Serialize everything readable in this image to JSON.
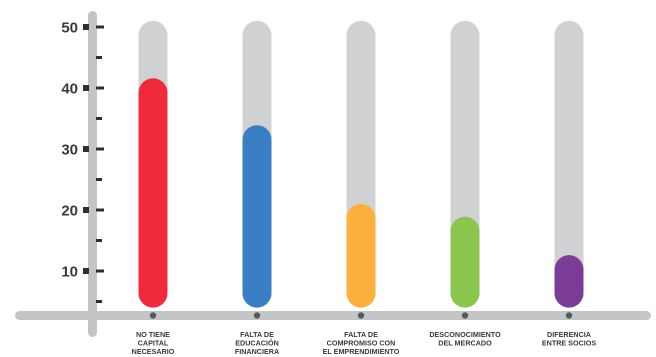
{
  "chart_data": {
    "type": "bar",
    "title": "",
    "xlabel": "",
    "ylabel": "",
    "ylim": [
      4,
      51
    ],
    "yticks": [
      10,
      20,
      30,
      40,
      50
    ],
    "grid": false,
    "categories": [
      [
        "NO TIENE",
        "CAPITAL",
        "NECESARIO"
      ],
      [
        "FALTA DE",
        "EDUCACIÓN",
        "FINANCIERA"
      ],
      [
        "FALTA DE",
        "COMPROMISO CON",
        "EL EMPRENDIMIENTO"
      ],
      [
        "DESCONOCIMIENTO",
        "DEL MERCADO"
      ],
      [
        "DIFERENCIA",
        "ENTRE SOCIOS"
      ]
    ],
    "values": [
      41.6,
      33.9,
      21.0,
      18.9,
      12.6
    ],
    "colors": [
      "#ee2a3c",
      "#3a7fc4",
      "#fdb03e",
      "#8bc64f",
      "#7b3c96"
    ],
    "track_color": "#d0d1d3",
    "axis_color": "#c3c5c7"
  }
}
